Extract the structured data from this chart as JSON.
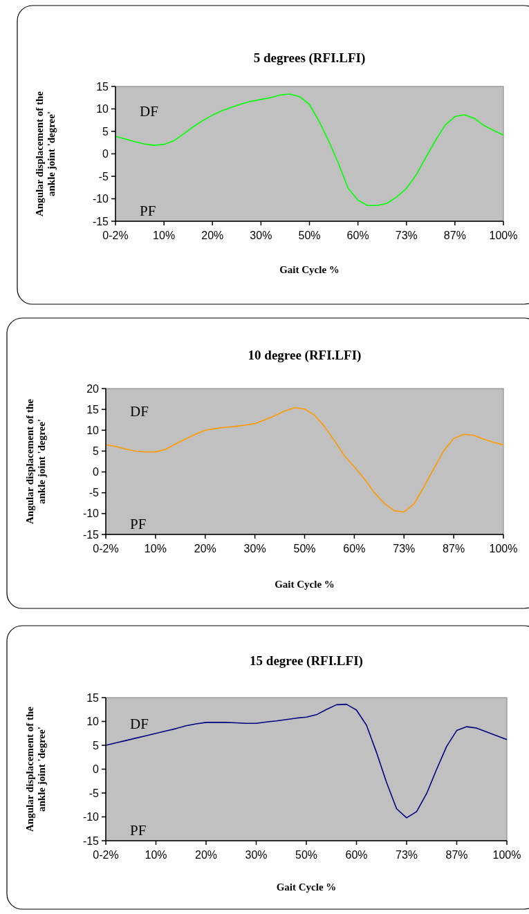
{
  "chart_data": [
    {
      "type": "line",
      "title": "5 degrees (RFI.LFI)",
      "xlabel": "Gait Cycle %",
      "ylabel": "Angular displacement of the ankle joint 'degree'",
      "annotations": [
        "DF",
        "PF"
      ],
      "categories": [
        "0-2%",
        null,
        null,
        null,
        null,
        "10%",
        null,
        null,
        null,
        null,
        "20%",
        null,
        null,
        null,
        null,
        "30%",
        null,
        null,
        null,
        null,
        "50%",
        null,
        null,
        null,
        null,
        "60%",
        null,
        null,
        null,
        null,
        "73%",
        null,
        null,
        null,
        null,
        "87%",
        null,
        null,
        null,
        null,
        "100%"
      ],
      "ylim": [
        -15,
        15
      ],
      "yticks": [
        -15,
        -10,
        -5,
        0,
        5,
        10,
        15
      ],
      "marker": "none",
      "line_style": "solid",
      "series": [
        {
          "color": "#00ff00",
          "values": [
            3.9,
            3.3,
            2.7,
            2.2,
            1.9,
            2.1,
            2.9,
            4.4,
            6.0,
            7.4,
            8.6,
            9.6,
            10.4,
            11.1,
            11.7,
            12.1,
            12.5,
            13.1,
            13.3,
            12.7,
            11.0,
            7.2,
            2.8,
            -2.2,
            -7.7,
            -10.3,
            -11.5,
            -11.5,
            -11.0,
            -9.6,
            -7.7,
            -4.7,
            -0.8,
            3.0,
            6.4,
            8.3,
            8.7,
            7.9,
            6.3,
            5.2,
            4.2
          ]
        }
      ]
    },
    {
      "type": "line",
      "title": "10 degree (RFI.LFI)",
      "xlabel": "Gait Cycle %",
      "ylabel": "Angular displacement of the ankle joint 'degree'",
      "annotations": [
        "DF",
        "PF"
      ],
      "categories": [
        "0-2%",
        null,
        null,
        null,
        null,
        "10%",
        null,
        null,
        null,
        null,
        "20%",
        null,
        null,
        null,
        null,
        "30%",
        null,
        null,
        null,
        null,
        "50%",
        null,
        null,
        null,
        null,
        "60%",
        null,
        null,
        null,
        null,
        "73%",
        null,
        null,
        null,
        null,
        "87%",
        null,
        null,
        null,
        null,
        "100%"
      ],
      "ylim": [
        -15,
        20
      ],
      "yticks": [
        -15,
        -10,
        -5,
        0,
        5,
        10,
        15,
        20
      ],
      "marker": "none",
      "line_style": "solid",
      "series": [
        {
          "color": "#ff9900",
          "values": [
            6.5,
            6.1,
            5.5,
            5.0,
            4.8,
            4.8,
            5.4,
            6.7,
            7.9,
            9.0,
            10.0,
            10.4,
            10.7,
            10.9,
            11.2,
            11.6,
            12.5,
            13.5,
            14.6,
            15.4,
            15.1,
            13.6,
            10.9,
            7.5,
            3.9,
            1.2,
            -1.6,
            -4.9,
            -7.5,
            -9.3,
            -9.6,
            -7.7,
            -3.6,
            0.8,
            5.1,
            8.0,
            9.0,
            8.8,
            7.9,
            7.1,
            6.5
          ]
        }
      ]
    },
    {
      "type": "line",
      "title": "15 degree (RFI.LFI)",
      "xlabel": "Gait Cycle %",
      "ylabel": "Angular displacement of the ankle joint 'degree'",
      "annotations": [
        "DF",
        "PF"
      ],
      "categories": [
        "0-2%",
        null,
        null,
        null,
        null,
        "10%",
        null,
        null,
        null,
        null,
        "20%",
        null,
        null,
        null,
        null,
        "30%",
        null,
        null,
        null,
        null,
        "50%",
        null,
        null,
        null,
        null,
        "60%",
        null,
        null,
        null,
        null,
        "73%",
        null,
        null,
        null,
        null,
        "87%",
        null,
        null,
        null,
        null,
        "100%"
      ],
      "ylim": [
        -15,
        15
      ],
      "yticks": [
        -15,
        -10,
        -5,
        0,
        5,
        10,
        15
      ],
      "marker": "none",
      "line_style": "solid",
      "series": [
        {
          "color": "#000080",
          "values": [
            5.0,
            5.5,
            6.0,
            6.5,
            7.0,
            7.5,
            8.0,
            8.5,
            9.1,
            9.5,
            9.8,
            9.8,
            9.8,
            9.7,
            9.6,
            9.6,
            9.9,
            10.1,
            10.4,
            10.7,
            10.9,
            11.4,
            12.5,
            13.5,
            13.6,
            12.4,
            9.2,
            3.5,
            -2.8,
            -8.3,
            -10.2,
            -8.9,
            -5.1,
            0.0,
            4.8,
            8.1,
            8.9,
            8.6,
            7.8,
            7.0,
            6.2
          ]
        }
      ]
    }
  ]
}
